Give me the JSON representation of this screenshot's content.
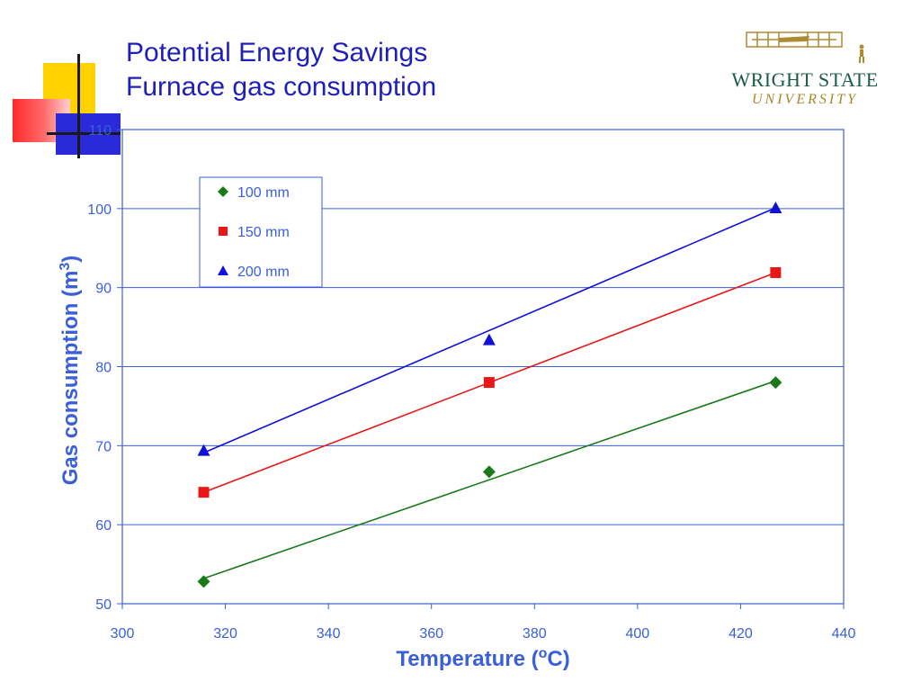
{
  "slide": {
    "title_line1": "Potential Energy Savings",
    "title_line2": "Furnace gas consumption"
  },
  "logo": {
    "line1": "Wright State",
    "line2": "University"
  },
  "colors": {
    "title": "#1f1fb8",
    "axis_text": "#3a5fd9",
    "plot_border": "#3a5fd9",
    "gridline": "#3a5fd9"
  },
  "chart_data": {
    "type": "scatter",
    "title": "",
    "xlabel": "Temperature (oC)",
    "ylabel": "Gas consumption (m3)",
    "xlim": [
      300,
      440
    ],
    "ylim": [
      50,
      110
    ],
    "xticks": [
      300,
      320,
      340,
      360,
      380,
      400,
      420,
      440
    ],
    "yticks": [
      50,
      60,
      70,
      80,
      90,
      100,
      110
    ],
    "grid": "horizontal",
    "legend": "upper-left",
    "series": [
      {
        "name": "100 mm",
        "marker": "diamond",
        "color": "#1a7a1a",
        "points": [
          [
            315.8,
            52.8
          ],
          [
            371.2,
            66.7
          ],
          [
            426.8,
            78.0
          ]
        ],
        "fit": [
          [
            315.8,
            53.2
          ],
          [
            426.8,
            78.2
          ]
        ]
      },
      {
        "name": "150 mm",
        "marker": "square",
        "color": "#e81818",
        "points": [
          [
            315.8,
            64.1
          ],
          [
            371.2,
            78.0
          ],
          [
            426.8,
            91.9
          ]
        ],
        "fit": [
          [
            315.8,
            64.1
          ],
          [
            426.8,
            91.9
          ]
        ]
      },
      {
        "name": "200 mm",
        "marker": "triangle",
        "color": "#1010d8",
        "points": [
          [
            315.8,
            69.4
          ],
          [
            371.2,
            83.4
          ],
          [
            426.8,
            100.1
          ]
        ],
        "fit": [
          [
            315.8,
            69.1
          ],
          [
            426.8,
            100.1
          ]
        ]
      }
    ]
  }
}
